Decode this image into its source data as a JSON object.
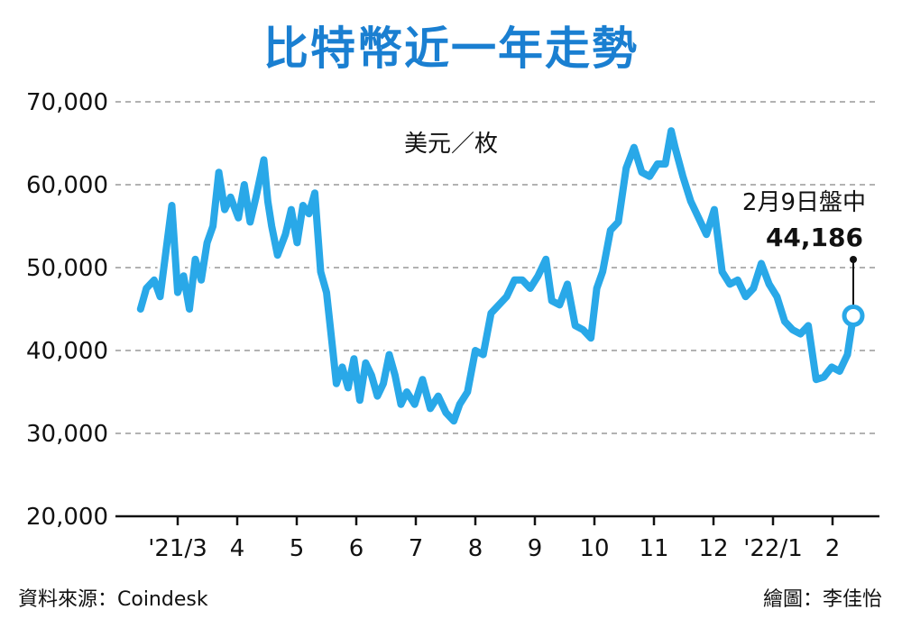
{
  "title": "比特幣近一年走勢",
  "source": "資料來源：Coindesk",
  "credit": "繪圖：李佳怡",
  "colors": {
    "line": "#29a8e8",
    "title": "#1a7fd1",
    "grid": "#999999"
  },
  "chart_data": {
    "type": "line",
    "title": "比特幣近一年走勢",
    "unit_label": "美元／枚",
    "ylim": [
      20000,
      70000
    ],
    "y_ticks": [
      "70,000",
      "60,000",
      "50,000",
      "40,000",
      "30,000",
      "20,000"
    ],
    "x_tick_labels": [
      "'21/3",
      "4",
      "5",
      "6",
      "7",
      "8",
      "9",
      "10",
      "11",
      "12",
      "'22/1",
      "2"
    ],
    "grid": "horizontal dashed",
    "annotation": {
      "label": "2月9日盤中",
      "value_text": "44,186",
      "date": "2022-02-09",
      "value": 44186
    },
    "series": [
      {
        "x": [
          "2021-02-10",
          "2021-02-13",
          "2021-02-17",
          "2021-02-20",
          "2021-02-23",
          "2021-02-26",
          "2021-03-01",
          "2021-03-04",
          "2021-03-07",
          "2021-03-10",
          "2021-03-13",
          "2021-03-16",
          "2021-03-19",
          "2021-03-22",
          "2021-03-25",
          "2021-03-28",
          "2021-04-01",
          "2021-04-04",
          "2021-04-07",
          "2021-04-10",
          "2021-04-14",
          "2021-04-16",
          "2021-04-18",
          "2021-04-21",
          "2021-04-25",
          "2021-04-28",
          "2021-05-01",
          "2021-05-04",
          "2021-05-07",
          "2021-05-10",
          "2021-05-13",
          "2021-05-16",
          "2021-05-19",
          "2021-05-21",
          "2021-05-24",
          "2021-05-27",
          "2021-05-30",
          "2021-06-02",
          "2021-06-05",
          "2021-06-08",
          "2021-06-11",
          "2021-06-14",
          "2021-06-17",
          "2021-06-20",
          "2021-06-23",
          "2021-06-26",
          "2021-06-30",
          "2021-07-04",
          "2021-07-08",
          "2021-07-12",
          "2021-07-16",
          "2021-07-20",
          "2021-07-23",
          "2021-07-27",
          "2021-07-31",
          "2021-08-04",
          "2021-08-08",
          "2021-08-12",
          "2021-08-16",
          "2021-08-20",
          "2021-08-24",
          "2021-08-28",
          "2021-09-01",
          "2021-09-05",
          "2021-09-08",
          "2021-09-12",
          "2021-09-16",
          "2021-09-20",
          "2021-09-24",
          "2021-09-28",
          "2021-10-01",
          "2021-10-04",
          "2021-10-08",
          "2021-10-12",
          "2021-10-16",
          "2021-10-20",
          "2021-10-24",
          "2021-10-28",
          "2021-11-01",
          "2021-11-05",
          "2021-11-08",
          "2021-11-10",
          "2021-11-14",
          "2021-11-18",
          "2021-11-22",
          "2021-11-26",
          "2021-11-30",
          "2021-12-04",
          "2021-12-08",
          "2021-12-12",
          "2021-12-16",
          "2021-12-20",
          "2021-12-24",
          "2021-12-28",
          "2022-01-01",
          "2022-01-05",
          "2022-01-09",
          "2022-01-13",
          "2022-01-17",
          "2022-01-21",
          "2022-01-25",
          "2022-01-29",
          "2022-02-02",
          "2022-02-06",
          "2022-02-09"
        ],
        "values": [
          45000,
          47500,
          48500,
          46500,
          52000,
          57500,
          47000,
          49000,
          45000,
          51000,
          48500,
          53000,
          55000,
          61500,
          57000,
          58500,
          56000,
          60000,
          55500,
          58500,
          63000,
          58000,
          55000,
          51500,
          54000,
          57000,
          53000,
          57500,
          56500,
          59000,
          49500,
          47000,
          40500,
          36000,
          38000,
          35500,
          39000,
          34000,
          38500,
          37000,
          34500,
          36000,
          39500,
          37000,
          33500,
          35000,
          33500,
          36500,
          33000,
          34500,
          32500,
          31500,
          33500,
          35000,
          40000,
          39500,
          44500,
          45500,
          46500,
          48500,
          48500,
          47500,
          49000,
          51000,
          46000,
          45500,
          48000,
          43000,
          42500,
          41500,
          47500,
          49500,
          54500,
          55500,
          62000,
          64500,
          61500,
          61000,
          62500,
          62500,
          66500,
          64500,
          61000,
          58000,
          56000,
          54000,
          57000,
          49500,
          48000,
          48500,
          46500,
          47500,
          50500,
          48000,
          46500,
          43500,
          42500,
          42000,
          43000,
          36500,
          36800,
          38000,
          37500,
          39500,
          44186
        ]
      }
    ]
  }
}
